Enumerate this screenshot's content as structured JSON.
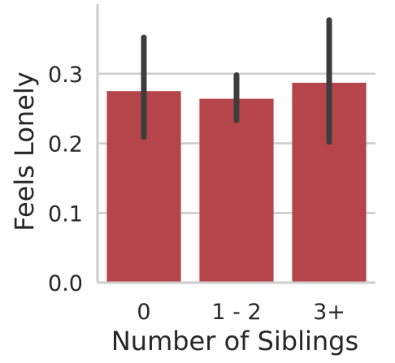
{
  "chart_data": {
    "type": "bar",
    "categories": [
      "0",
      "1 - 2",
      "3+"
    ],
    "values": [
      0.275,
      0.264,
      0.287
    ],
    "error_bars": [
      {
        "low": 0.209,
        "high": 0.352
      },
      {
        "low": 0.233,
        "high": 0.298
      },
      {
        "low": 0.202,
        "high": 0.377
      }
    ],
    "xlabel": "Number of Siblings",
    "ylabel": "Feels Lonely",
    "ylim": [
      0,
      0.4
    ],
    "yticks": [
      0.0,
      0.1,
      0.2,
      0.3
    ],
    "ytick_labels": [
      "0.0",
      "0.1",
      "0.2",
      "0.3"
    ],
    "grid": "horizontal",
    "bar_color": "#b5454a",
    "error_color": "#3d3d3d",
    "grid_color": "#cccccc"
  }
}
